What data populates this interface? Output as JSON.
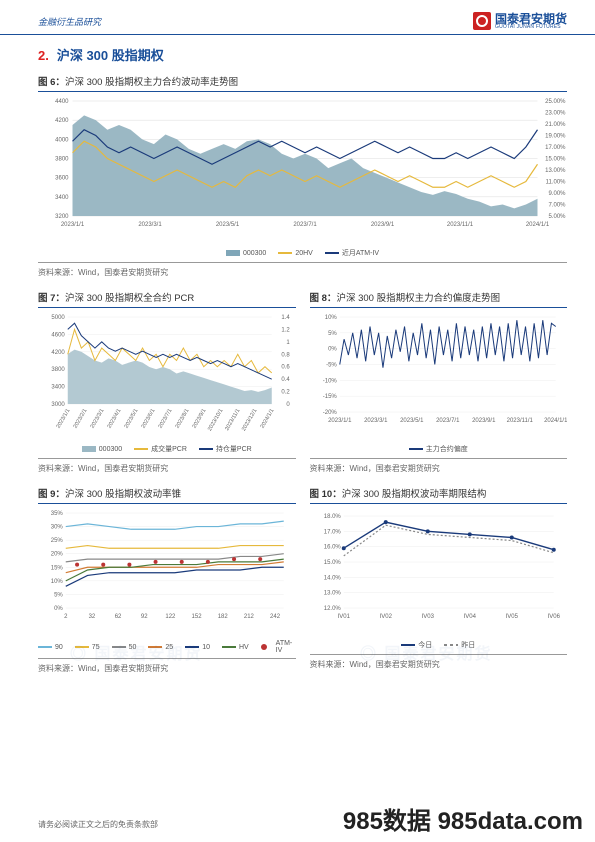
{
  "header": {
    "left": "金融衍生品研究",
    "brand_cn": "国泰君安期货",
    "brand_en": "GUOTAI JUNAN FUTURES"
  },
  "section": {
    "num": "2.",
    "title": "沪深 300 股指期权"
  },
  "source_text": "资料来源：Wind，国泰君安期货研究",
  "footer_text": "请务必阅读正文之后的免责条款部",
  "watermark_big": "985数据  985data.com",
  "fig6": {
    "title_prefix": "图 6：",
    "title": "沪深 300 股指期权主力合约波动率走势图",
    "left_ticks": [
      4400,
      4200,
      4000,
      3800,
      3600,
      3400,
      3200
    ],
    "right_ticks": [
      "25.00%",
      "23.00%",
      "21.00%",
      "19.00%",
      "17.00%",
      "15.00%",
      "13.00%",
      "11.00%",
      "9.00%",
      "7.00%",
      "5.00%"
    ],
    "x_labels": [
      "2023/1/1",
      "2023/3/1",
      "2023/5/1",
      "2023/7/1",
      "2023/9/1",
      "2023/11/1",
      "2024/1/1"
    ],
    "legend": [
      {
        "label": "000300",
        "color": "#7fa6b8",
        "type": "area"
      },
      {
        "label": "20HV",
        "color": "#e6b93c",
        "type": "line"
      },
      {
        "label": "近月ATM-IV",
        "color": "#1a3a7a",
        "type": "line"
      }
    ],
    "area_color": "#9bb8c4",
    "area": [
      4150,
      4250,
      4200,
      4100,
      4150,
      4100,
      4000,
      3950,
      4050,
      4000,
      3900,
      3850,
      3900,
      3950,
      3900,
      3980,
      4000,
      3950,
      3850,
      3800,
      3850,
      3800,
      3700,
      3750,
      3800,
      3700,
      3650,
      3600,
      3550,
      3500,
      3450,
      3420,
      3460,
      3430,
      3380,
      3350,
      3300,
      3320,
      3280,
      3320,
      3380
    ],
    "hv": [
      16,
      18,
      17,
      15,
      14,
      13,
      12,
      11,
      12,
      13,
      12,
      11,
      10,
      11,
      10,
      12,
      13,
      12,
      13,
      12,
      11,
      12,
      11,
      10,
      11,
      12,
      13,
      12,
      11,
      12,
      11,
      10,
      10,
      11,
      10,
      11,
      12,
      11,
      10,
      11,
      14
    ],
    "iv": [
      18,
      20,
      19,
      17,
      16,
      17,
      16,
      15,
      16,
      17,
      16,
      15,
      14,
      15,
      16,
      17,
      18,
      17,
      18,
      17,
      16,
      17,
      16,
      15,
      16,
      17,
      18,
      17,
      16,
      17,
      16,
      15,
      15,
      16,
      15,
      16,
      17,
      16,
      15,
      17,
      20
    ],
    "yL": [
      3200,
      4400
    ],
    "yR": [
      5,
      25
    ]
  },
  "fig7": {
    "title_prefix": "图 7：",
    "title": "沪深 300 股指期权全合约 PCR",
    "left_ticks": [
      5000,
      4600,
      4200,
      3800,
      3400,
      3000
    ],
    "right_ticks": [
      "1.4",
      "1.2",
      "1",
      "0.8",
      "0.6",
      "0.4",
      "0.2",
      "0"
    ],
    "x_labels": [
      "2023/1/1",
      "2023/2/1",
      "2023/3/1",
      "2023/4/1",
      "2023/5/1",
      "2023/6/1",
      "2023/7/1",
      "2023/8/1",
      "2023/9/1",
      "2023/10/1",
      "2023/11/1",
      "2023/12/1",
      "2024/1/1"
    ],
    "legend": [
      {
        "label": "000300",
        "color": "#9bb8c4",
        "type": "area"
      },
      {
        "label": "成交量PCR",
        "color": "#e6b93c",
        "type": "line"
      },
      {
        "label": "持仓量PCR",
        "color": "#1a3a7a",
        "type": "line"
      }
    ],
    "area": [
      4150,
      4250,
      4200,
      4100,
      4000,
      3950,
      4050,
      4000,
      3900,
      3950,
      4000,
      3950,
      3850,
      3800,
      3850,
      3800,
      3700,
      3750,
      3700,
      3650,
      3600,
      3550,
      3500,
      3450,
      3400,
      3350,
      3300,
      3320,
      3280,
      3320,
      3380
    ],
    "vol": [
      0.8,
      1.2,
      0.9,
      1.0,
      0.7,
      0.9,
      0.8,
      0.7,
      0.9,
      0.8,
      0.7,
      0.9,
      0.7,
      0.8,
      0.6,
      0.8,
      0.7,
      0.9,
      0.7,
      0.8,
      0.6,
      0.7,
      0.6,
      0.7,
      0.6,
      0.8,
      0.6,
      0.7,
      0.5,
      0.6,
      0.5
    ],
    "oi": [
      1.2,
      1.3,
      1.1,
      1.0,
      0.9,
      1.0,
      0.9,
      0.85,
      0.9,
      0.85,
      0.8,
      0.85,
      0.8,
      0.75,
      0.8,
      0.75,
      0.8,
      0.75,
      0.7,
      0.75,
      0.7,
      0.65,
      0.7,
      0.65,
      0.6,
      0.65,
      0.6,
      0.55,
      0.5,
      0.45,
      0.4
    ],
    "yL": [
      3000,
      5000
    ],
    "yR": [
      0,
      1.4
    ]
  },
  "fig8": {
    "title_prefix": "图 8：",
    "title": "沪深 300 股指期权主力合约偏度走势图",
    "y_ticks": [
      "10%",
      "5%",
      "0%",
      "-5%",
      "-10%",
      "-15%",
      "-20%"
    ],
    "x_labels": [
      "2023/1/1",
      "2023/3/1",
      "2023/5/1",
      "2023/7/1",
      "2023/9/1",
      "2023/11/1",
      "2024/1/1"
    ],
    "legend": [
      {
        "label": "主力合约偏度",
        "color": "#1a3a7a",
        "type": "line"
      }
    ],
    "series": [
      -5,
      3,
      -2,
      5,
      -3,
      6,
      -4,
      7,
      -2,
      5,
      -6,
      4,
      -3,
      6,
      -1,
      7,
      -4,
      5,
      -2,
      8,
      -3,
      6,
      -5,
      7,
      -2,
      6,
      -4,
      8,
      -3,
      7,
      -2,
      6,
      -4,
      7,
      -3,
      8,
      -2,
      7,
      -4,
      8,
      -3,
      9,
      -2,
      7,
      -4,
      8,
      -3,
      9,
      -2,
      8,
      7
    ],
    "yL": [
      -20,
      10
    ]
  },
  "fig9": {
    "title_prefix": "图 9：",
    "title": "沪深 300 股指期权波动率锥",
    "y_ticks": [
      "35%",
      "30%",
      "25%",
      "20%",
      "15%",
      "10%",
      "5%",
      "0%"
    ],
    "x_labels": [
      2,
      32,
      62,
      92,
      122,
      152,
      182,
      212,
      242
    ],
    "legend": [
      {
        "label": "90",
        "color": "#6bb5d8",
        "type": "line"
      },
      {
        "label": "75",
        "color": "#e6b93c",
        "type": "line"
      },
      {
        "label": "50",
        "color": "#888",
        "type": "line"
      },
      {
        "label": "25",
        "color": "#d37b33",
        "type": "line"
      },
      {
        "label": "10",
        "color": "#1a3a7a",
        "type": "line"
      },
      {
        "label": "HV",
        "color": "#4a7a3a",
        "type": "line"
      },
      {
        "label": "ATM-IV",
        "color": "#b33",
        "type": "dot"
      }
    ],
    "p90": [
      30,
      31,
      30,
      29,
      29,
      29,
      30,
      30,
      31,
      31,
      32
    ],
    "p75": [
      22,
      23,
      22,
      22,
      22,
      22,
      22,
      22,
      23,
      23,
      23
    ],
    "p50": [
      17,
      18,
      18,
      18,
      18,
      18,
      18,
      18,
      19,
      19,
      20
    ],
    "p25": [
      13,
      15,
      15,
      15,
      15,
      15,
      15,
      16,
      16,
      16,
      17
    ],
    "p10": [
      8,
      12,
      13,
      13,
      13,
      13,
      14,
      14,
      14,
      15,
      15
    ],
    "hv": [
      10,
      14,
      15,
      15,
      16,
      16,
      16,
      17,
      17,
      17,
      18
    ],
    "iv_x": [
      15,
      45,
      75,
      105,
      135,
      165,
      195,
      225
    ],
    "iv_y": [
      16,
      16,
      16,
      17,
      17,
      17,
      18,
      18
    ],
    "yL": [
      0,
      35
    ],
    "xL": [
      2,
      252
    ]
  },
  "fig10": {
    "title_prefix": "图 10：",
    "title": "沪深 300 股指期权波动率期限结构",
    "y_ticks": [
      "18.0%",
      "17.0%",
      "16.0%",
      "15.0%",
      "14.0%",
      "13.0%",
      "12.0%"
    ],
    "x_labels": [
      "IV01",
      "IV02",
      "IV03",
      "IV04",
      "IV05",
      "IV06"
    ],
    "legend": [
      {
        "label": "今日",
        "color": "#1a3a7a",
        "type": "line"
      },
      {
        "label": "昨日",
        "color": "#888",
        "type": "dash"
      }
    ],
    "today": [
      15.9,
      17.6,
      17.0,
      16.8,
      16.6,
      15.8
    ],
    "yday": [
      15.4,
      17.4,
      16.8,
      16.6,
      16.4,
      15.6
    ],
    "yL": [
      12,
      18
    ]
  }
}
